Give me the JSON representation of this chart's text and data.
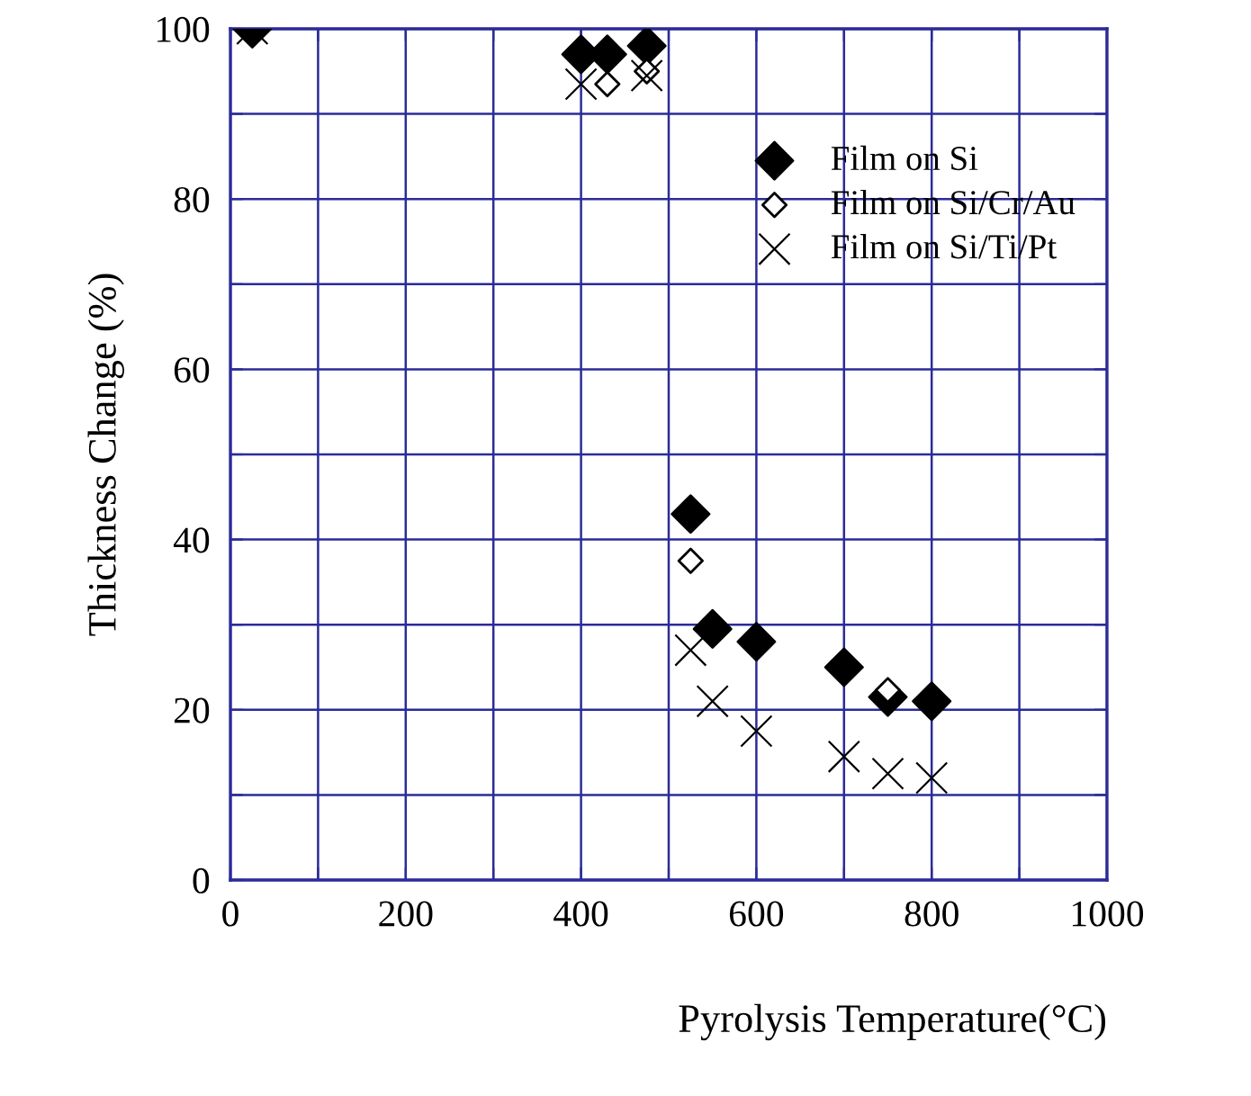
{
  "chart_data": {
    "type": "scatter",
    "xlabel": "Pyrolysis Temperature(°C)",
    "ylabel": "Thickness Change (%)",
    "xlim": [
      0,
      1000
    ],
    "ylim": [
      0,
      100
    ],
    "xticks": [
      0,
      {
        "value": 100,
        "label": null
      },
      200,
      {
        "value": 300,
        "label": null
      },
      400,
      {
        "value": 500,
        "label": null
      },
      600,
      {
        "value": 700,
        "label": null
      },
      800,
      {
        "value": 900,
        "label": null
      },
      1000
    ],
    "yticks": [
      0,
      {
        "value": 10,
        "label": null
      },
      20,
      {
        "value": 30,
        "label": null
      },
      40,
      {
        "value": 50,
        "label": null
      },
      60,
      {
        "value": 70,
        "label": null
      },
      80,
      {
        "value": 90,
        "label": null
      },
      100
    ],
    "grid": true,
    "legend": "top right",
    "series": [
      {
        "name": "Film on Si",
        "color": "#000000",
        "marker": "diamond",
        "x": [
          25,
          400,
          430,
          475,
          525,
          550,
          600,
          700,
          750,
          800
        ],
        "values": [
          100,
          97,
          97,
          98,
          43,
          29.5,
          28,
          25,
          21.5,
          21
        ]
      },
      {
        "name": "Film on Si/Cr/Au",
        "color": "#000000",
        "marker": "diamond",
        "x": [
          430,
          475,
          525,
          750
        ],
        "values": [
          93.5,
          95,
          37.5,
          22.3
        ]
      },
      {
        "name": "Film on Si/Ti/Pt",
        "color": "#000000",
        "marker": "cross",
        "x": [
          25,
          400,
          475,
          525,
          550,
          600,
          700,
          750,
          800
        ],
        "values": [
          100,
          93.5,
          94.5,
          27,
          21,
          17.5,
          14.5,
          12.5,
          12
        ]
      }
    ]
  }
}
